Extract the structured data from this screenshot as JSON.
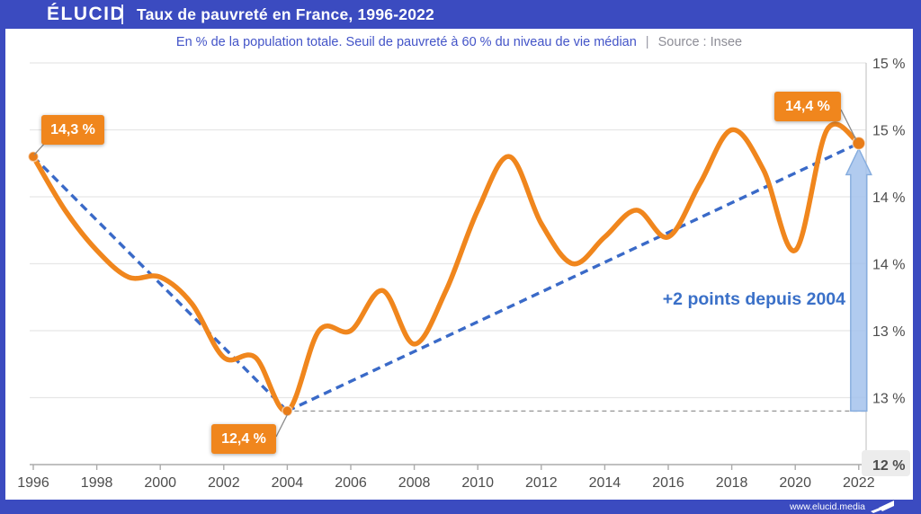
{
  "header": {
    "logo": "ÉLUCID",
    "title": "Taux de pauvreté en France, 1996-2022"
  },
  "subtitle": {
    "description": "En % de la population totale. Seuil de pauvreté à 60 % du niveau de vie médian",
    "separator": "|",
    "source": "Source : Insee"
  },
  "chart_data": {
    "type": "line",
    "title": "Taux de pauvreté en France, 1996-2022",
    "subtitle": "En % de la population totale. Seuil de pauvreté à 60 % du niveau de vie médian",
    "source": "Source : Insee",
    "x": [
      1996,
      1997,
      1998,
      1999,
      2000,
      2001,
      2002,
      2003,
      2004,
      2005,
      2006,
      2007,
      2008,
      2009,
      2010,
      2011,
      2012,
      2013,
      2014,
      2015,
      2016,
      2017,
      2018,
      2019,
      2020,
      2021,
      2022
    ],
    "values": [
      14.3,
      13.9,
      13.6,
      13.4,
      13.4,
      13.2,
      12.8,
      12.8,
      12.4,
      13.0,
      13.0,
      13.3,
      12.9,
      13.3,
      13.9,
      14.3,
      13.8,
      13.5,
      13.7,
      13.9,
      13.7,
      14.1,
      14.5,
      14.2,
      13.6,
      14.5,
      14.4
    ],
    "ylim": [
      12,
      15
    ],
    "grid": true,
    "x_ticks": [
      "1996",
      "1998",
      "2000",
      "2002",
      "2004",
      "2006",
      "2008",
      "2010",
      "2012",
      "2014",
      "2016",
      "2018",
      "2020",
      "2022"
    ],
    "y_ticks": [
      {
        "value": 15.0,
        "label": "15 %",
        "highlight": false
      },
      {
        "value": 14.5,
        "label": "15 %",
        "highlight": false
      },
      {
        "value": 14.0,
        "label": "14 %",
        "highlight": false
      },
      {
        "value": 13.5,
        "label": "14 %",
        "highlight": false
      },
      {
        "value": 13.0,
        "label": "13 %",
        "highlight": false
      },
      {
        "value": 12.5,
        "label": "13 %",
        "highlight": false
      },
      {
        "value": 12.0,
        "label": "12 %",
        "highlight": true
      }
    ],
    "annotations": [
      {
        "year": 1996,
        "value": 14.3,
        "label": "14,3 %"
      },
      {
        "year": 2004,
        "value": 12.4,
        "label": "12,4 %"
      },
      {
        "year": 2022,
        "value": 14.4,
        "label": "14,4 %"
      }
    ],
    "delta_label": "+2 points depuis 2004",
    "trend_points": [
      1996,
      2004,
      2022
    ]
  },
  "footer": {
    "url": "www.elucid.media"
  },
  "colors": {
    "brand_blue": "#3B4BC0",
    "series_orange": "#F0861D",
    "dot_orange": "#E87C18",
    "trend_blue": "#3A6AC8",
    "arrow_fill": "#A3C2EC",
    "arrow_stroke": "#85ACDE",
    "delta_text_blue": "#3A70C8",
    "grid_gray": "#E6E6E6",
    "axis_gray": "#ABABAB",
    "tick_text_gray": "#4D4D4D"
  }
}
